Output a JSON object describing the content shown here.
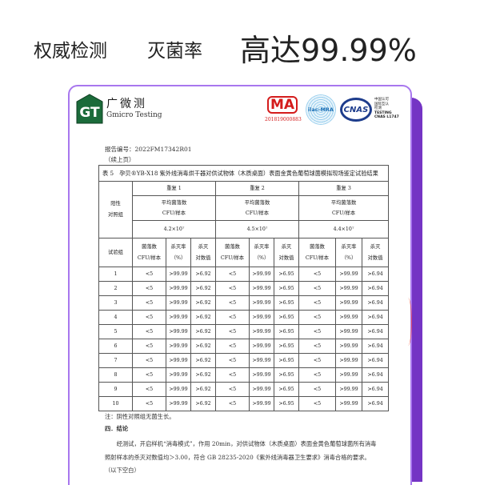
{
  "headline": {
    "part1": "权威检测",
    "part2": "灭菌率",
    "part3": "高达99.99%"
  },
  "colors": {
    "frame": "#a877ee",
    "accent_bar": "#7434c4",
    "cma_red": "#d41c1c",
    "cnas_blue": "#1d3c8c"
  },
  "header": {
    "brand_cn": "广微测",
    "brand_en": "Gmicro Testing",
    "cma": "MA",
    "cma_number": "201819000883",
    "ilac": "ilac-MRA",
    "cnas": "CNAS",
    "cnas_lines": [
      "中国认可",
      "国际互认",
      "检测",
      "TESTING",
      "CNAS L1747"
    ]
  },
  "report": {
    "number": "报告编号：2022FM17342R01",
    "continued": "（续上页）"
  },
  "table": {
    "title": "表 5　孕贝®YB-X18 紫外线消毒烘干器对供试物体（木质桌面）表面金黄色葡萄球菌模拟现场鉴定试验结果",
    "positive_label": "阳性\n对照组",
    "repeats": [
      "重复 1",
      "重复 2",
      "重复 3"
    ],
    "avg_label": "平均菌落数\nCFU/样本",
    "positive_values": [
      "4.2×10⁷",
      "4.5×10⁷",
      "4.4×10⁷"
    ],
    "group_label": "试验组",
    "col_headers": [
      "菌落数\nCFU/样本",
      "杀灭率\n（%）",
      "杀灭\n对数值"
    ],
    "rows": [
      [
        "1",
        "<5",
        ">99.99",
        ">6.92",
        "<5",
        ">99.99",
        ">6.95",
        "<5",
        ">99.99",
        ">6.94"
      ],
      [
        "2",
        "<5",
        ">99.99",
        ">6.92",
        "<5",
        ">99.99",
        ">6.95",
        "<5",
        ">99.99",
        ">6.94"
      ],
      [
        "3",
        "<5",
        ">99.99",
        ">6.92",
        "<5",
        ">99.99",
        ">6.95",
        "<5",
        ">99.99",
        ">6.94"
      ],
      [
        "4",
        "<5",
        ">99.99",
        ">6.92",
        "<5",
        ">99.99",
        ">6.95",
        "<5",
        ">99.99",
        ">6.94"
      ],
      [
        "5",
        "<5",
        ">99.99",
        ">6.92",
        "<5",
        ">99.99",
        ">6.95",
        "<5",
        ">99.99",
        ">6.94"
      ],
      [
        "6",
        "<5",
        ">99.99",
        ">6.92",
        "<5",
        ">99.99",
        ">6.95",
        "<5",
        ">99.99",
        ">6.94"
      ],
      [
        "7",
        "<5",
        ">99.99",
        ">6.92",
        "<5",
        ">99.99",
        ">6.95",
        "<5",
        ">99.99",
        ">6.94"
      ],
      [
        "8",
        "<5",
        ">99.99",
        ">6.92",
        "<5",
        ">99.99",
        ">6.95",
        "<5",
        ">99.99",
        ">6.94"
      ],
      [
        "9",
        "<5",
        ">99.99",
        ">6.92",
        "<5",
        ">99.99",
        ">6.95",
        "<5",
        ">99.99",
        ">6.94"
      ],
      [
        "10",
        "<5",
        ">99.99",
        ">6.92",
        "<5",
        ">99.99",
        ">6.95",
        "<5",
        ">99.99",
        ">6.94"
      ]
    ]
  },
  "footer": {
    "note": "注：阴性对照组无菌生长。",
    "section": "四．结论",
    "para1": "　　经测试，开启样机“消毒模式”，作用 20min，对供试物体（木质桌面）表面金黄色葡萄球菌所有消毒",
    "para2": "照射样本的杀灭对数值均＞3.00，符合 GB 28235-2020《紫外线消毒器卫生要求》消毒合格的要求。",
    "blank": "（以下空白）"
  }
}
